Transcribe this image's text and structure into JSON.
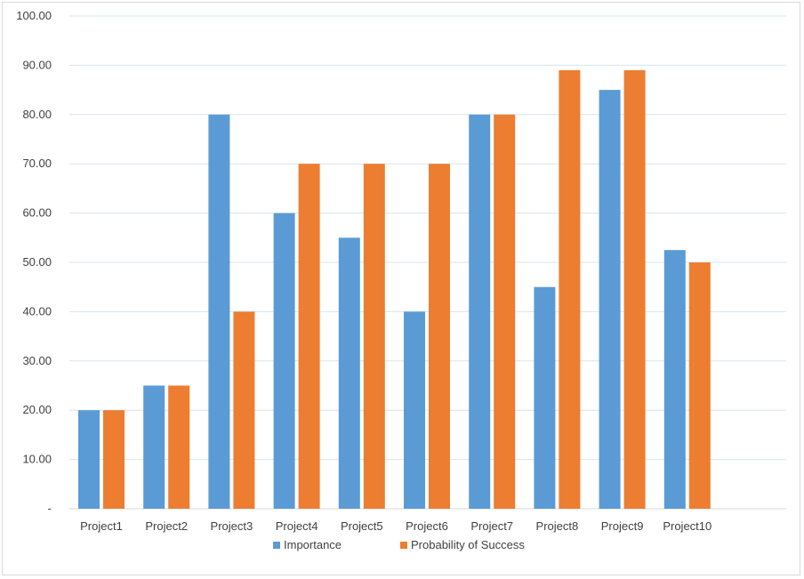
{
  "chart_data": {
    "type": "bar",
    "categories": [
      "Project1",
      "Project2",
      "Project3",
      "Project4",
      "Project5",
      "Project6",
      "Project7",
      "Project8",
      "Project9",
      "Project10"
    ],
    "series": [
      {
        "name": "Importance",
        "values": [
          20,
          25,
          80,
          60,
          55,
          40,
          80,
          45,
          85,
          52.5
        ],
        "color": "#5b9bd5"
      },
      {
        "name": "Probability of Success",
        "values": [
          20,
          25,
          40,
          70,
          70,
          70,
          80,
          89,
          89,
          50
        ],
        "color": "#ed7d31"
      }
    ],
    "yticks": [
      "-",
      "10.00",
      "20.00",
      "30.00",
      "40.00",
      "50.00",
      "60.00",
      "70.00",
      "80.00",
      "90.00",
      "100.00"
    ],
    "ylim": [
      0,
      100
    ],
    "grid": true,
    "legend_position": "bottom"
  }
}
